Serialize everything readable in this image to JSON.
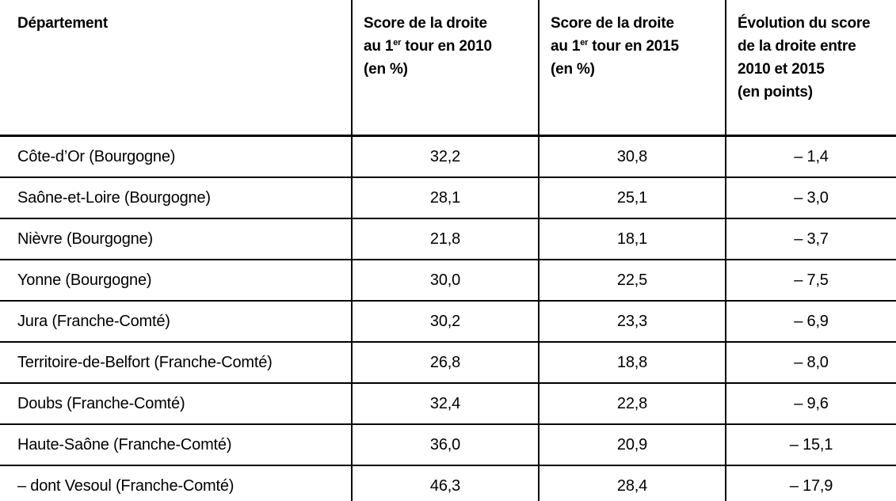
{
  "colors": {
    "text": "#000000",
    "border": "#000000",
    "background": "#ffffff"
  },
  "table": {
    "header": {
      "col1": {
        "title": "Département"
      },
      "col2": {
        "line1": "Score de la droite",
        "line2_pre": "au 1",
        "line2_sup": "er",
        "line2_post": " tour en 2010",
        "line3": "(en %)"
      },
      "col3": {
        "line1": "Score de la droite",
        "line2_pre": "au 1",
        "line2_sup": "er",
        "line2_post": " tour en 2015",
        "line3": "(en %)"
      },
      "col4": {
        "line1": "Évolution du score",
        "line2": "de la droite entre",
        "line3": "2010 et 2015",
        "line4": "(en points)"
      }
    },
    "rows": [
      {
        "departement": "Côte-d’Or (Bourgogne)",
        "score_2010": "32,2",
        "score_2015": "30,8",
        "evolution": "– 1,4"
      },
      {
        "departement": "Saône-et-Loire (Bourgogne)",
        "score_2010": "28,1",
        "score_2015": "25,1",
        "evolution": "– 3,0"
      },
      {
        "departement": "Nièvre (Bourgogne)",
        "score_2010": "21,8",
        "score_2015": "18,1",
        "evolution": "– 3,7"
      },
      {
        "departement": "Yonne (Bourgogne)",
        "score_2010": "30,0",
        "score_2015": "22,5",
        "evolution": "– 7,5"
      },
      {
        "departement": "Jura (Franche-Comté)",
        "score_2010": "30,2",
        "score_2015": "23,3",
        "evolution": "– 6,9"
      },
      {
        "departement": "Territoire-de-Belfort (Franche-Comté)",
        "score_2010": "26,8",
        "score_2015": "18,8",
        "evolution": "– 8,0"
      },
      {
        "departement": "Doubs (Franche-Comté)",
        "score_2010": "32,4",
        "score_2015": "22,8",
        "evolution": "– 9,6"
      },
      {
        "departement": "Haute-Saône (Franche-Comté)",
        "score_2010": "36,0",
        "score_2015": "20,9",
        "evolution": "– 15,1"
      },
      {
        "departement": "– dont Vesoul (Franche-Comté)",
        "score_2010": "46,3",
        "score_2015": "28,4",
        "evolution": "– 17,9"
      }
    ]
  }
}
